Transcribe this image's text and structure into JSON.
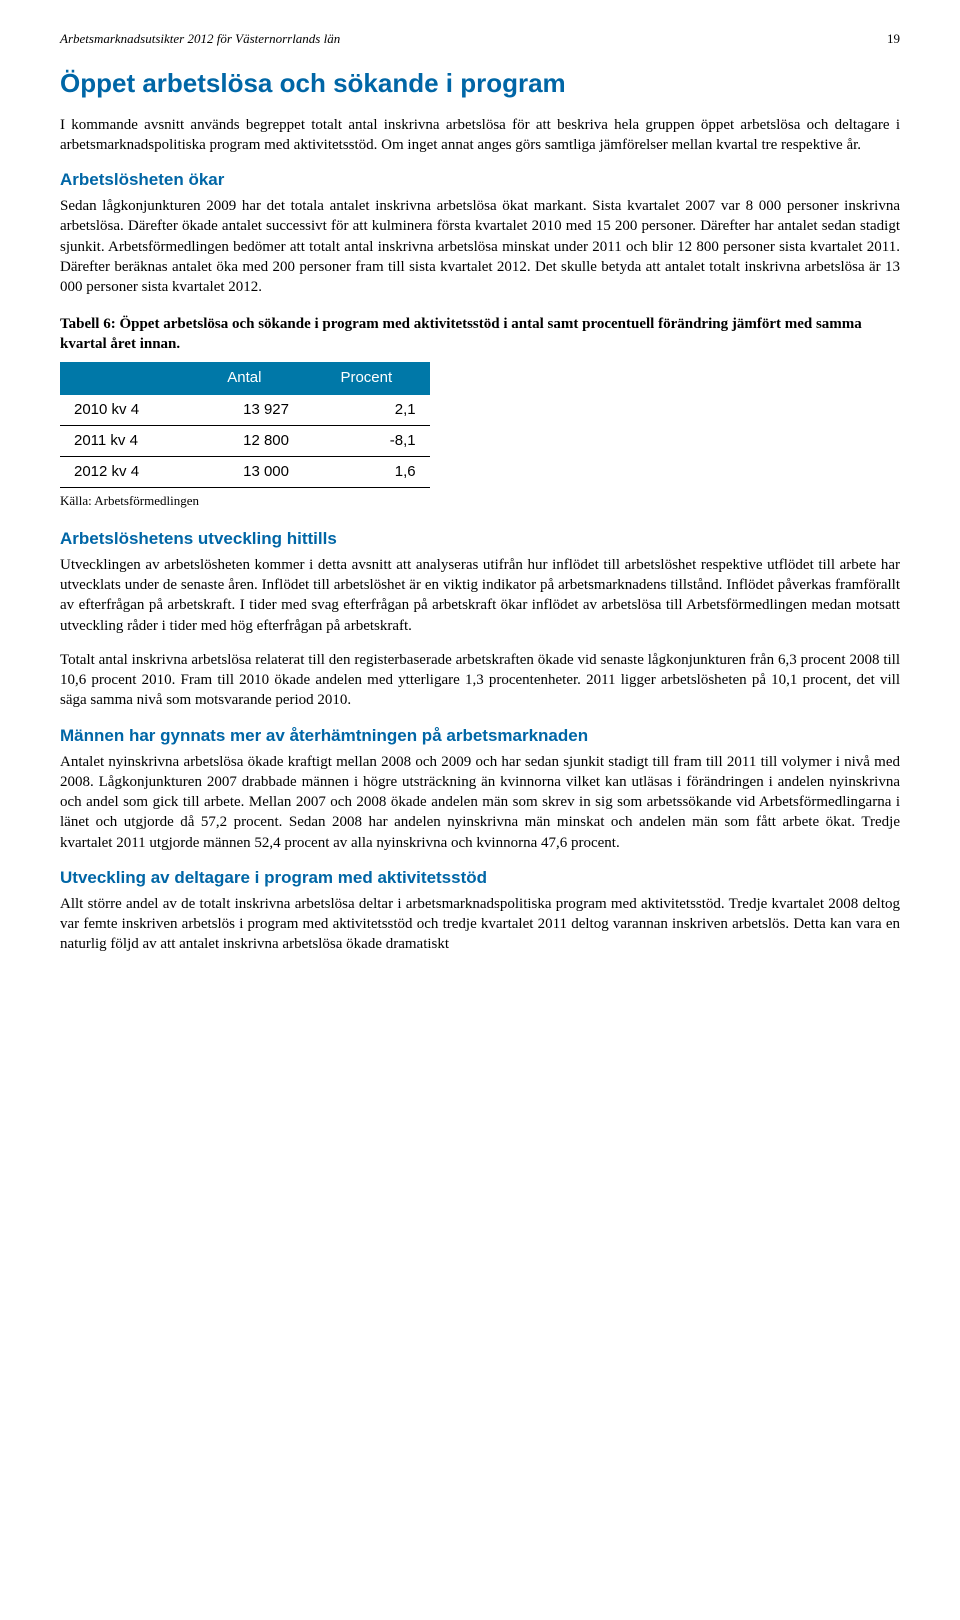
{
  "header": {
    "title": "Arbetsmarknadsutsikter 2012 för Västernorrlands län",
    "page_number": "19"
  },
  "main_heading": "Öppet arbetslösa och sökande i program",
  "intro_paragraph": "I kommande avsnitt används begreppet totalt antal inskrivna arbetslösa för att beskriva hela gruppen öppet arbetslösa och deltagare i arbetsmarknadspolitiska program med aktivitetsstöd. Om inget annat anges görs samtliga jämförelser mellan kvartal tre respektive år.",
  "section1": {
    "heading": "Arbetslösheten ökar",
    "paragraph": "Sedan lågkonjunkturen 2009 har det totala antalet inskrivna arbetslösa ökat markant. Sista kvartalet 2007 var 8 000 personer inskrivna arbetslösa. Därefter ökade antalet successivt för att kulminera första kvartalet 2010 med 15 200 personer. Därefter har antalet sedan stadigt sjunkit. Arbetsförmedlingen bedömer att totalt antal inskrivna arbetslösa minskat under 2011 och blir 12 800 personer sista kvartalet 2011. Därefter beräknas antalet öka med 200 personer fram till sista kvartalet 2012. Det skulle betyda att antalet totalt inskrivna arbetslösa är 13 000 personer sista kvartalet 2012."
  },
  "table": {
    "caption": "Tabell 6: Öppet arbetslösa och sökande i program med aktivitetsstöd i antal samt procentuell förändring jämfört med samma kvartal året innan.",
    "columns": [
      "",
      "Antal",
      "Procent"
    ],
    "rows": [
      [
        "2010 kv  4",
        "13 927",
        "2,1"
      ],
      [
        "2011 kv  4",
        "12 800",
        "-8,1"
      ],
      [
        "2012 kv  4",
        "13 000",
        "1,6"
      ]
    ],
    "header_bg": "#0078a8",
    "header_color": "#ffffff",
    "source": "Källa: Arbetsförmedlingen"
  },
  "section2": {
    "heading": "Arbetslöshetens utveckling hittills",
    "paragraph1": "Utvecklingen av arbetslösheten kommer i detta avsnitt att analyseras utifrån hur inflödet till arbetslöshet respektive utflödet till arbete har utvecklats under de senaste åren. Inflödet till arbetslöshet är en viktig indikator på arbetsmarknadens tillstånd. Inflödet påverkas framförallt av efterfrågan på arbetskraft. I tider med svag efterfrågan på arbetskraft ökar inflödet av arbetslösa till Arbetsförmedlingen medan motsatt utveckling råder i tider med hög efterfrågan på arbetskraft.",
    "paragraph2": "Totalt antal inskrivna arbetslösa relaterat till den registerbaserade arbetskraften ökade vid senaste lågkonjunkturen från 6,3 procent 2008 till 10,6 procent 2010. Fram till 2010 ökade andelen med ytterligare 1,3 procentenheter. 2011 ligger arbetslösheten på 10,1 procent, det vill säga samma nivå som motsvarande period 2010."
  },
  "section3": {
    "heading": "Männen har gynnats mer av återhämtningen på arbetsmarknaden",
    "paragraph": "Antalet nyinskrivna arbetslösa ökade kraftigt mellan 2008 och 2009 och har sedan sjunkit stadigt till fram till 2011 till volymer i nivå med 2008. Lågkonjunkturen 2007 drabbade männen i högre utsträckning än kvinnorna vilket kan utläsas i förändringen i andelen nyinskrivna och andel som gick till arbete. Mellan 2007 och 2008 ökade andelen män som skrev in sig som arbetssökande vid Arbetsförmedlingarna i länet och utgjorde då 57,2 procent. Sedan 2008 har andelen nyinskrivna män minskat och andelen män som fått arbete ökat. Tredje kvartalet 2011 utgjorde männen 52,4 procent av alla nyinskrivna och kvinnorna 47,6 procent."
  },
  "section4": {
    "heading": "Utveckling av deltagare i program med aktivitetsstöd",
    "paragraph": "Allt större andel av de totalt inskrivna arbetslösa deltar i arbetsmarknadspolitiska program med aktivitetsstöd. Tredje kvartalet 2008 deltog var femte inskriven arbetslös i program med aktivitetsstöd och tredje kvartalet 2011 deltog varannan inskriven arbetslös. Detta kan vara en naturlig följd av att antalet inskrivna arbetslösa ökade dramatiskt"
  }
}
